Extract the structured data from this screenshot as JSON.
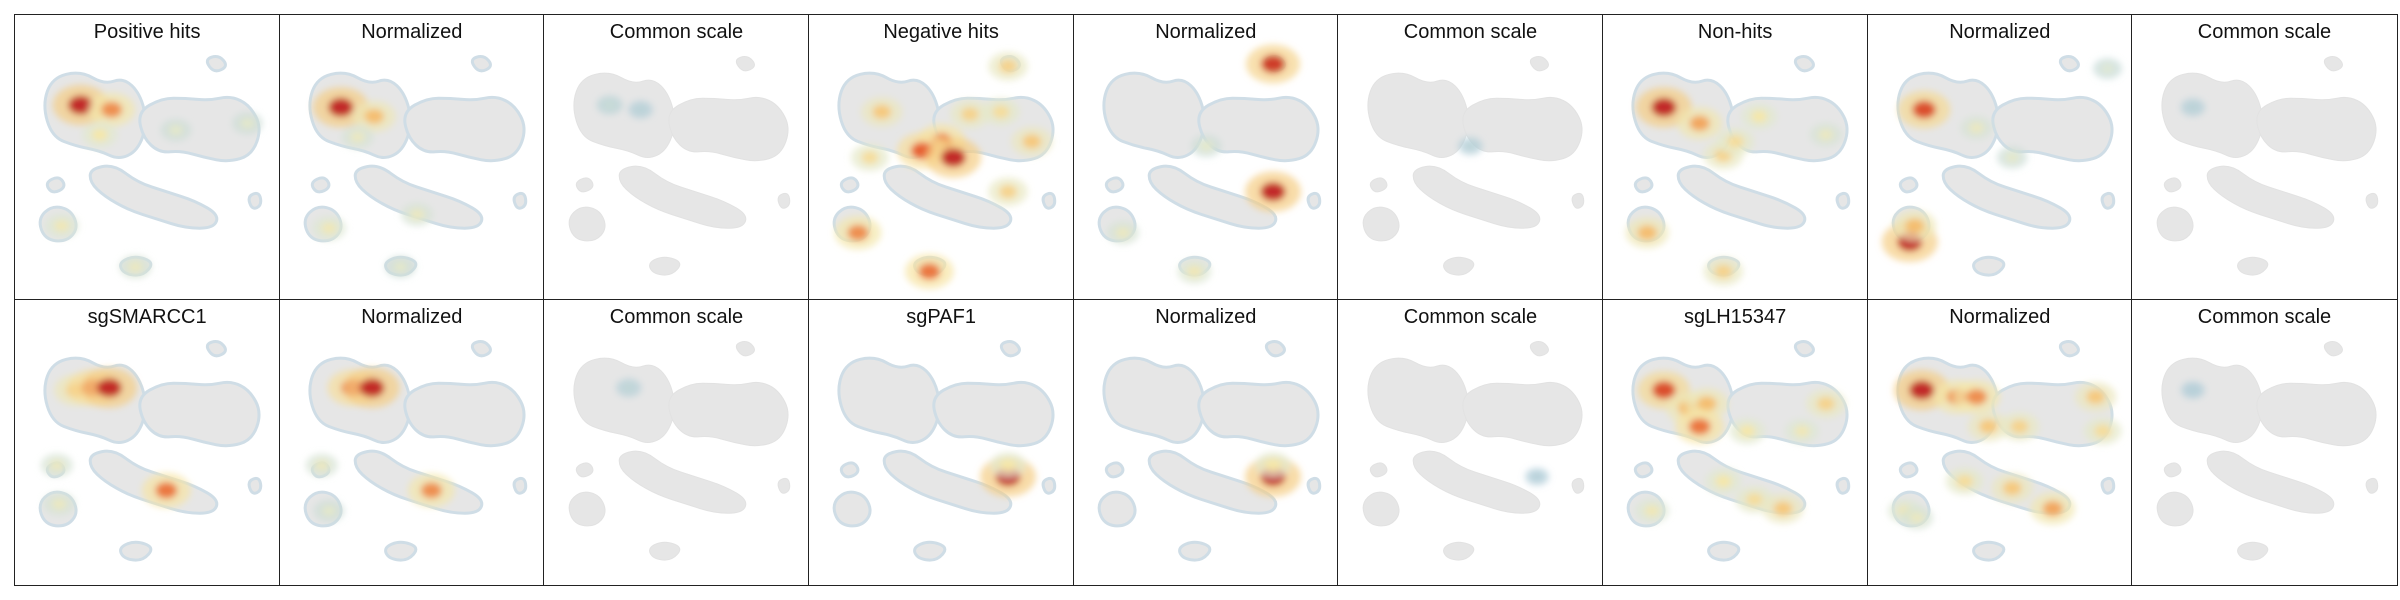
{
  "chart_data": {
    "type": "heatmap",
    "rows": 2,
    "columns": 9,
    "background_color": "#e6e6e6",
    "colormap": [
      "#a3c5d8",
      "#dfe8d3",
      "#f6e7a8",
      "#f4bc6b",
      "#e6582b",
      "#b20f1f"
    ],
    "panels": [
      {
        "title": "Positive hits",
        "scale": "own",
        "hotspots": [
          {
            "x": 0.22,
            "y": 0.22,
            "i": 0.95
          },
          {
            "x": 0.35,
            "y": 0.24,
            "i": 0.7
          },
          {
            "x": 0.3,
            "y": 0.35,
            "i": 0.4
          },
          {
            "x": 0.14,
            "y": 0.75,
            "i": 0.35
          },
          {
            "x": 0.45,
            "y": 0.93,
            "i": 0.3
          },
          {
            "x": 0.62,
            "y": 0.33,
            "i": 0.25
          },
          {
            "x": 0.92,
            "y": 0.3,
            "i": 0.25
          }
        ]
      },
      {
        "title": "Normalized",
        "scale": "normalized",
        "hotspots": [
          {
            "x": 0.2,
            "y": 0.23,
            "i": 0.95
          },
          {
            "x": 0.34,
            "y": 0.27,
            "i": 0.6
          },
          {
            "x": 0.27,
            "y": 0.36,
            "i": 0.3
          },
          {
            "x": 0.15,
            "y": 0.76,
            "i": 0.35
          },
          {
            "x": 0.52,
            "y": 0.7,
            "i": 0.3
          },
          {
            "x": 0.45,
            "y": 0.93,
            "i": 0.25
          }
        ]
      },
      {
        "title": "Common scale",
        "scale": "common",
        "hotspots": [
          {
            "x": 0.22,
            "y": 0.22,
            "i": 0.12
          },
          {
            "x": 0.35,
            "y": 0.24,
            "i": 0.08
          }
        ]
      },
      {
        "title": "Negative hits",
        "scale": "own",
        "hotspots": [
          {
            "x": 0.78,
            "y": 0.05,
            "i": 0.5
          },
          {
            "x": 0.5,
            "y": 0.38,
            "i": 0.75
          },
          {
            "x": 0.42,
            "y": 0.42,
            "i": 0.8
          },
          {
            "x": 0.55,
            "y": 0.45,
            "i": 0.95
          },
          {
            "x": 0.25,
            "y": 0.25,
            "i": 0.55
          },
          {
            "x": 0.62,
            "y": 0.26,
            "i": 0.5
          },
          {
            "x": 0.75,
            "y": 0.25,
            "i": 0.45
          },
          {
            "x": 0.88,
            "y": 0.38,
            "i": 0.55
          },
          {
            "x": 0.2,
            "y": 0.45,
            "i": 0.45
          },
          {
            "x": 0.15,
            "y": 0.78,
            "i": 0.7
          },
          {
            "x": 0.78,
            "y": 0.6,
            "i": 0.5
          },
          {
            "x": 0.45,
            "y": 0.95,
            "i": 0.75
          }
        ]
      },
      {
        "title": "Normalized",
        "scale": "normalized",
        "hotspots": [
          {
            "x": 0.78,
            "y": 0.04,
            "i": 0.9
          },
          {
            "x": 0.78,
            "y": 0.6,
            "i": 0.95
          },
          {
            "x": 0.5,
            "y": 0.4,
            "i": 0.25
          },
          {
            "x": 0.15,
            "y": 0.78,
            "i": 0.3
          },
          {
            "x": 0.45,
            "y": 0.95,
            "i": 0.35
          }
        ]
      },
      {
        "title": "Common scale",
        "scale": "common",
        "hotspots": [
          {
            "x": 0.5,
            "y": 0.4,
            "i": 0.08
          }
        ]
      },
      {
        "title": "Non-hits",
        "scale": "own",
        "hotspots": [
          {
            "x": 0.2,
            "y": 0.23,
            "i": 0.95
          },
          {
            "x": 0.35,
            "y": 0.3,
            "i": 0.65
          },
          {
            "x": 0.45,
            "y": 0.44,
            "i": 0.5
          },
          {
            "x": 0.5,
            "y": 0.38,
            "i": 0.45
          },
          {
            "x": 0.6,
            "y": 0.27,
            "i": 0.4
          },
          {
            "x": 0.13,
            "y": 0.78,
            "i": 0.6
          },
          {
            "x": 0.45,
            "y": 0.95,
            "i": 0.5
          },
          {
            "x": 0.88,
            "y": 0.35,
            "i": 0.3
          }
        ]
      },
      {
        "title": "Normalized",
        "scale": "normalized",
        "hotspots": [
          {
            "x": 0.18,
            "y": 0.24,
            "i": 0.85
          },
          {
            "x": 0.4,
            "y": 0.32,
            "i": 0.3
          },
          {
            "x": 0.12,
            "y": 0.82,
            "i": 0.95
          },
          {
            "x": 0.14,
            "y": 0.75,
            "i": 0.6
          },
          {
            "x": 0.55,
            "y": 0.45,
            "i": 0.25
          },
          {
            "x": 0.95,
            "y": 0.06,
            "i": 0.2
          }
        ]
      },
      {
        "title": "Common scale",
        "scale": "common",
        "hotspots": [
          {
            "x": 0.2,
            "y": 0.23,
            "i": 0.08
          }
        ]
      },
      {
        "title": "sgSMARCC1",
        "scale": "own",
        "hotspots": [
          {
            "x": 0.2,
            "y": 0.22,
            "i": 0.6
          },
          {
            "x": 0.27,
            "y": 0.21,
            "i": 0.8
          },
          {
            "x": 0.34,
            "y": 0.21,
            "i": 0.95
          },
          {
            "x": 0.12,
            "y": 0.55,
            "i": 0.3
          },
          {
            "x": 0.13,
            "y": 0.72,
            "i": 0.3
          },
          {
            "x": 0.58,
            "y": 0.66,
            "i": 0.75
          }
        ]
      },
      {
        "title": "Normalized",
        "scale": "normalized",
        "hotspots": [
          {
            "x": 0.25,
            "y": 0.21,
            "i": 0.8
          },
          {
            "x": 0.33,
            "y": 0.21,
            "i": 0.95
          },
          {
            "x": 0.12,
            "y": 0.55,
            "i": 0.3
          },
          {
            "x": 0.58,
            "y": 0.66,
            "i": 0.7
          },
          {
            "x": 0.15,
            "y": 0.75,
            "i": 0.25
          }
        ]
      },
      {
        "title": "Common scale",
        "scale": "common",
        "hotspots": [
          {
            "x": 0.3,
            "y": 0.21,
            "i": 0.1
          }
        ]
      },
      {
        "title": "sgPAF1",
        "scale": "own",
        "hotspots": [
          {
            "x": 0.78,
            "y": 0.6,
            "i": 0.95
          },
          {
            "x": 0.78,
            "y": 0.55,
            "i": 0.4
          }
        ]
      },
      {
        "title": "Normalized",
        "scale": "normalized",
        "hotspots": [
          {
            "x": 0.78,
            "y": 0.6,
            "i": 0.95
          },
          {
            "x": 0.78,
            "y": 0.55,
            "i": 0.4
          }
        ]
      },
      {
        "title": "Common scale",
        "scale": "common",
        "hotspots": [
          {
            "x": 0.78,
            "y": 0.6,
            "i": 0.06
          }
        ]
      },
      {
        "title": "sgLH15347",
        "scale": "own",
        "hotspots": [
          {
            "x": 0.2,
            "y": 0.22,
            "i": 0.85
          },
          {
            "x": 0.3,
            "y": 0.3,
            "i": 0.6
          },
          {
            "x": 0.38,
            "y": 0.28,
            "i": 0.6
          },
          {
            "x": 0.35,
            "y": 0.38,
            "i": 0.75
          },
          {
            "x": 0.88,
            "y": 0.28,
            "i": 0.5
          },
          {
            "x": 0.78,
            "y": 0.4,
            "i": 0.35
          },
          {
            "x": 0.55,
            "y": 0.4,
            "i": 0.4
          },
          {
            "x": 0.15,
            "y": 0.75,
            "i": 0.35
          },
          {
            "x": 0.45,
            "y": 0.62,
            "i": 0.4
          },
          {
            "x": 0.58,
            "y": 0.7,
            "i": 0.45
          },
          {
            "x": 0.7,
            "y": 0.74,
            "i": 0.55
          }
        ]
      },
      {
        "title": "Normalized",
        "scale": "normalized",
        "hotspots": [
          {
            "x": 0.17,
            "y": 0.22,
            "i": 0.95
          },
          {
            "x": 0.32,
            "y": 0.25,
            "i": 0.7
          },
          {
            "x": 0.4,
            "y": 0.25,
            "i": 0.7
          },
          {
            "x": 0.45,
            "y": 0.38,
            "i": 0.55
          },
          {
            "x": 0.58,
            "y": 0.38,
            "i": 0.5
          },
          {
            "x": 0.9,
            "y": 0.25,
            "i": 0.55
          },
          {
            "x": 0.93,
            "y": 0.4,
            "i": 0.45
          },
          {
            "x": 0.1,
            "y": 0.75,
            "i": 0.35
          },
          {
            "x": 0.35,
            "y": 0.62,
            "i": 0.45
          },
          {
            "x": 0.55,
            "y": 0.65,
            "i": 0.55
          },
          {
            "x": 0.72,
            "y": 0.74,
            "i": 0.65
          },
          {
            "x": 0.15,
            "y": 0.78,
            "i": 0.3
          }
        ]
      },
      {
        "title": "Common scale",
        "scale": "common",
        "hotspots": [
          {
            "x": 0.2,
            "y": 0.22,
            "i": 0.06
          }
        ]
      }
    ]
  }
}
